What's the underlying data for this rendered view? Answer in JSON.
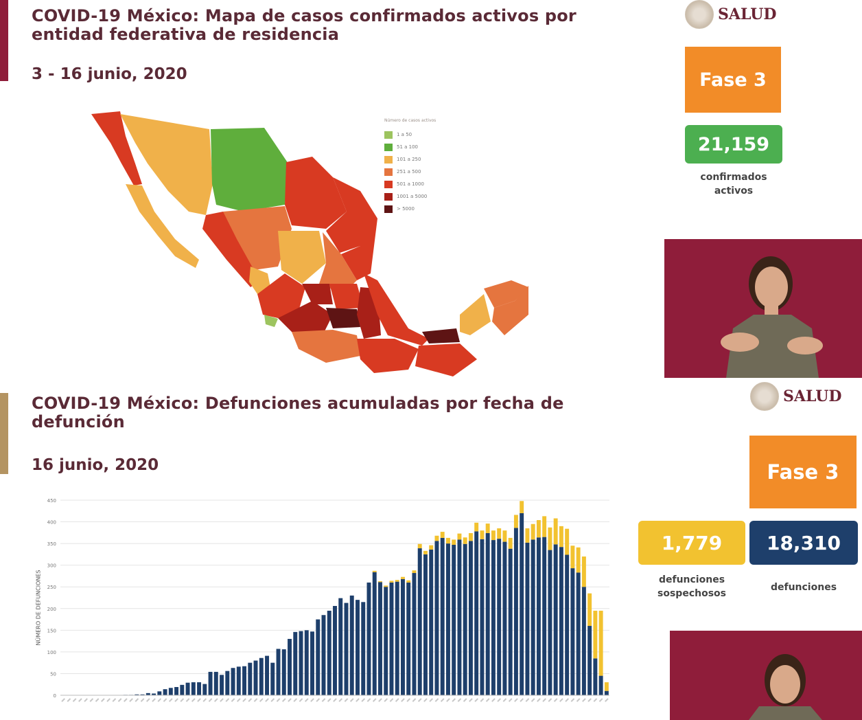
{
  "slide1": {
    "title_line1": "COVID-19 México: Mapa de casos confirmados activos por",
    "title_line2": "entidad federativa de residencia",
    "date": "3 - 16 junio, 2020",
    "logo_text": "SALUD",
    "phase": "Fase 3",
    "active_count": "21,159",
    "active_label_1": "confirmados",
    "active_label_2": "activos",
    "legend": {
      "title": "Número de casos activos",
      "items": [
        {
          "range": "1 a 50",
          "color": "#9dc45f"
        },
        {
          "range": "51 a 100",
          "color": "#5fae3c"
        },
        {
          "range": "101 a 250",
          "color": "#f0b14a"
        },
        {
          "range": "251 a 500",
          "color": "#e5753f"
        },
        {
          "range": "501 a 1000",
          "color": "#d83a22"
        },
        {
          "range": "1001 a 5000",
          "color": "#a82018"
        },
        {
          "range": "> 5000",
          "color": "#5e1414"
        }
      ]
    }
  },
  "slide2": {
    "title_line1": "COVID-19 México: Defunciones acumuladas por fecha de",
    "title_line2": "defunción",
    "date": "16 junio, 2020",
    "logo_text": "SALUD",
    "phase": "Fase 3",
    "suspected_count": "1,779",
    "suspected_label_1": "defunciones",
    "suspected_label_2": "sospechosos",
    "deaths_count": "18,310",
    "deaths_label": "defunciones"
  },
  "colors": {
    "maroon": "#8f1d3a",
    "orange": "#f28c28",
    "green": "#4caf50",
    "yellow": "#f2c230",
    "navy": "#1e3f6b"
  },
  "chart_data": {
    "type": "bar",
    "stacked": true,
    "ylabel": "NÚMERO DE DEFUNCIONES",
    "ylim": [
      0,
      450
    ],
    "yticks": [
      0,
      50,
      100,
      150,
      200,
      250,
      300,
      350,
      400,
      450
    ],
    "series": [
      {
        "name": "defunciones",
        "color": "#1e3f6b",
        "values": [
          0,
          0,
          0,
          0,
          0,
          0,
          0,
          0,
          0,
          0,
          0,
          1,
          1,
          2,
          2,
          5,
          4,
          9,
          14,
          17,
          19,
          24,
          29,
          30,
          30,
          26,
          54,
          54,
          47,
          56,
          63,
          66,
          67,
          75,
          80,
          86,
          91,
          75,
          107,
          106,
          130,
          146,
          148,
          150,
          147,
          175,
          185,
          195,
          206,
          224,
          213,
          230,
          220,
          215,
          260,
          284,
          261,
          250,
          260,
          262,
          268,
          260,
          282,
          339,
          325,
          336,
          356,
          363,
          350,
          347,
          359,
          349,
          356,
          378,
          360,
          374,
          358,
          361,
          354,
          338,
          386,
          420,
          352,
          359,
          364,
          365,
          335,
          348,
          342,
          324,
          293,
          283,
          250,
          160,
          85,
          45,
          10
        ]
      },
      {
        "name": "defunciones sospechosos",
        "color": "#f2c230",
        "values": [
          0,
          0,
          0,
          0,
          0,
          0,
          0,
          0,
          0,
          0,
          0,
          0,
          0,
          0,
          0,
          0,
          0,
          0,
          0,
          0,
          0,
          0,
          0,
          0,
          0,
          0,
          0,
          0,
          0,
          0,
          0,
          0,
          0,
          0,
          0,
          0,
          0,
          0,
          0,
          0,
          0,
          0,
          0,
          0,
          0,
          0,
          0,
          0,
          0,
          0,
          0,
          0,
          0,
          0,
          0,
          3,
          2,
          3,
          4,
          4,
          5,
          5,
          6,
          10,
          8,
          10,
          12,
          14,
          13,
          12,
          14,
          15,
          18,
          20,
          20,
          22,
          22,
          24,
          26,
          25,
          30,
          28,
          33,
          36,
          40,
          48,
          52,
          60,
          48,
          60,
          52,
          58,
          70,
          75,
          110,
          150,
          20
        ]
      }
    ]
  }
}
